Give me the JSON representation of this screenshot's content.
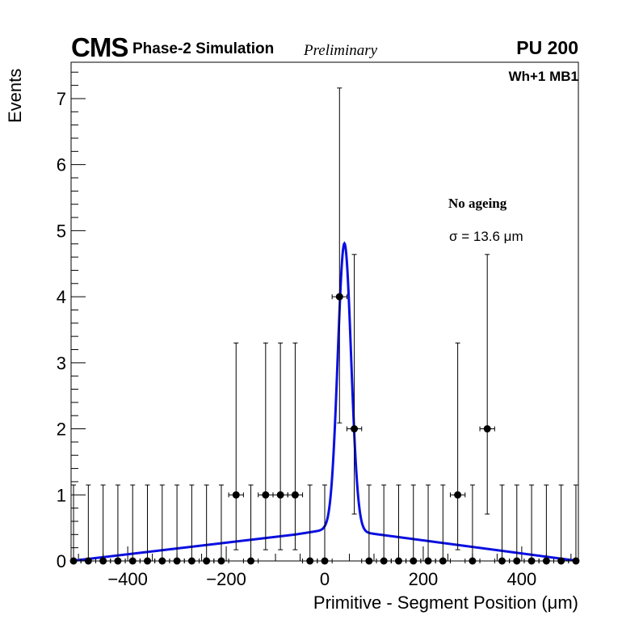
{
  "header": {
    "experiment": "CMS",
    "simulation": "Phase-2 Simulation",
    "status": "Preliminary",
    "pileup": "PU 200",
    "station": "Wh+1 MB1"
  },
  "annotations": {
    "ageing": "No ageing",
    "sigma": "σ = 13.6 μm"
  },
  "colors": {
    "fit": "#0a10e0",
    "points": "#000000"
  },
  "chart_data": {
    "type": "scatter",
    "title": "CMS Phase-2 Simulation Preliminary",
    "xlabel": "Primitive - Segment Position (μm)",
    "ylabel": "Events",
    "xlim": [
      -515,
      515
    ],
    "ylim": [
      0,
      7.55
    ],
    "bin_width": 30,
    "x_ticks": [
      -400,
      -200,
      0,
      200,
      400
    ],
    "x_tick_labels": [
      "−400",
      "−200",
      "0",
      "200",
      "400"
    ],
    "y_ticks": [
      0,
      1,
      2,
      3,
      4,
      5,
      6,
      7
    ],
    "y_tick_labels": [
      "0",
      "1",
      "2",
      "3",
      "4",
      "5",
      "6",
      "7"
    ],
    "series": [
      {
        "name": "Simulation",
        "x": [
          -510,
          -480,
          -450,
          -420,
          -390,
          -360,
          -330,
          -300,
          -270,
          -240,
          -210,
          -180,
          -150,
          -120,
          -90,
          -60,
          -30,
          0,
          30,
          60,
          90,
          120,
          150,
          180,
          210,
          240,
          270,
          300,
          330,
          360,
          390,
          420,
          450,
          480,
          510
        ],
        "y": [
          0,
          0,
          0,
          0,
          0,
          0,
          0,
          0,
          0,
          0,
          0,
          1,
          0,
          1,
          1,
          1,
          0,
          0,
          4,
          2,
          0,
          0,
          0,
          0,
          0,
          0,
          1,
          0,
          2,
          0,
          0,
          0,
          0,
          0,
          0
        ],
        "err_up": [
          1.15,
          1.15,
          1.15,
          1.15,
          1.15,
          1.15,
          1.15,
          1.15,
          1.15,
          1.15,
          1.15,
          2.3,
          1.15,
          2.3,
          2.3,
          2.3,
          1.15,
          1.15,
          3.16,
          2.64,
          1.15,
          1.15,
          1.15,
          1.15,
          1.15,
          1.15,
          2.3,
          1.15,
          2.64,
          1.15,
          1.15,
          1.15,
          1.15,
          1.15,
          1.15
        ],
        "err_down": [
          0,
          0,
          0,
          0,
          0,
          0,
          0,
          0,
          0,
          0,
          0,
          0.83,
          0,
          0.83,
          0.83,
          0.83,
          0,
          0,
          1.91,
          1.29,
          0,
          0,
          0,
          0,
          0,
          0,
          0.83,
          0,
          1.29,
          0,
          0,
          0,
          0,
          0,
          0
        ]
      },
      {
        "name": "Fit",
        "type": "line",
        "model": "gaussian + two-sided linear background",
        "peak_mean": 40,
        "peak_sigma": 13.6,
        "peak_amplitude": 4.35,
        "background": {
          "x": [
            -515,
            -60,
            0,
            60,
            515
          ],
          "y": [
            0.0,
            0.4,
            0.47,
            0.45,
            0.0
          ]
        }
      }
    ]
  }
}
